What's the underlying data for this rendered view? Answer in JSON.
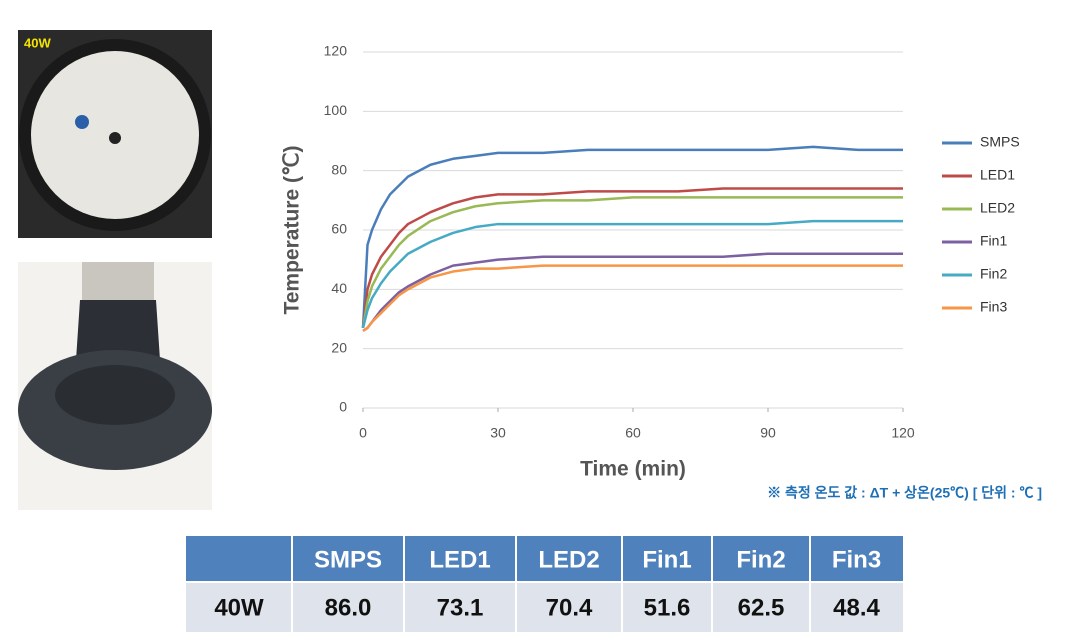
{
  "photo_label": "40W",
  "chart_data": {
    "type": "line",
    "xlabel": "Time (min)",
    "ylabel": "Temperature (℃)",
    "x": [
      0,
      1,
      2,
      4,
      6,
      8,
      10,
      15,
      20,
      25,
      30,
      40,
      50,
      60,
      70,
      80,
      90,
      100,
      110,
      120
    ],
    "xlim": [
      0,
      120
    ],
    "xticks": [
      0,
      30,
      60,
      90,
      120
    ],
    "ylim": [
      0,
      120
    ],
    "yticks": [
      0,
      20,
      40,
      60,
      80,
      100,
      120
    ],
    "grid": true,
    "legend": "right",
    "series": [
      {
        "name": "SMPS",
        "color": "#4a7ebb",
        "values": [
          27,
          55,
          60,
          67,
          72,
          75,
          78,
          82,
          84,
          85,
          86,
          86,
          87,
          87,
          87,
          87,
          87,
          88,
          87,
          87
        ]
      },
      {
        "name": "LED1",
        "color": "#be4b48",
        "values": [
          27,
          40,
          45,
          51,
          55,
          59,
          62,
          66,
          69,
          71,
          72,
          72,
          73,
          73,
          73,
          74,
          74,
          74,
          74,
          74
        ]
      },
      {
        "name": "LED2",
        "color": "#98b954",
        "values": [
          27,
          36,
          41,
          47,
          51,
          55,
          58,
          63,
          66,
          68,
          69,
          70,
          70,
          71,
          71,
          71,
          71,
          71,
          71,
          71
        ]
      },
      {
        "name": "Fin1",
        "color": "#7d60a0",
        "values": [
          26,
          27,
          29,
          33,
          36,
          39,
          41,
          45,
          48,
          49,
          50,
          51,
          51,
          51,
          51,
          51,
          52,
          52,
          52,
          52
        ]
      },
      {
        "name": "Fin2",
        "color": "#46aac5",
        "values": [
          27,
          33,
          37,
          42,
          46,
          49,
          52,
          56,
          59,
          61,
          62,
          62,
          62,
          62,
          62,
          62,
          62,
          63,
          63,
          63
        ]
      },
      {
        "name": "Fin3",
        "color": "#f79646",
        "values": [
          26,
          27,
          29,
          32,
          35,
          38,
          40,
          44,
          46,
          47,
          47,
          48,
          48,
          48,
          48,
          48,
          48,
          48,
          48,
          48
        ]
      }
    ]
  },
  "note": "※ 측정 온도 값 : ΔT + 상온(25℃)  [ 단위 : ℃ ]",
  "table": {
    "header": [
      "SMPS",
      "LED1",
      "LED2",
      "Fin1",
      "Fin2",
      "Fin3"
    ],
    "rows": [
      {
        "label": "40W",
        "values": [
          "86.0",
          "73.1",
          "70.4",
          "51.6",
          "62.5",
          "48.4"
        ]
      }
    ]
  }
}
